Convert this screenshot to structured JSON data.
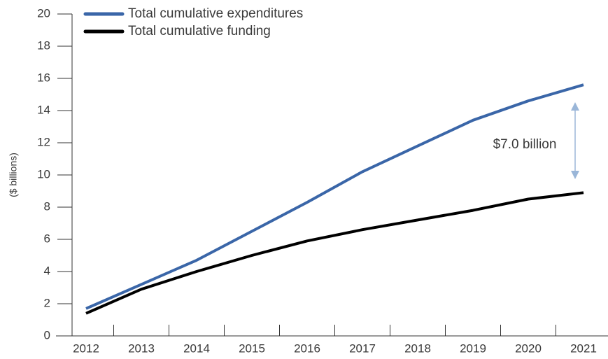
{
  "chart_data": {
    "type": "line",
    "ylabel": "($ billions)",
    "categories": [
      "2012",
      "2013",
      "2014",
      "2015",
      "2016",
      "2017",
      "2018",
      "2019",
      "2020",
      "2021"
    ],
    "series": [
      {
        "name": "Total cumulative expenditures",
        "color": "#3a66a8",
        "values": [
          1.7,
          3.2,
          4.7,
          6.5,
          8.3,
          10.2,
          11.8,
          13.4,
          14.6,
          15.6
        ]
      },
      {
        "name": "Total cumulative funding",
        "color": "#000000",
        "values": [
          1.4,
          2.9,
          4.0,
          5.0,
          5.9,
          6.6,
          7.2,
          7.8,
          8.5,
          8.9
        ]
      }
    ],
    "annotations": [
      {
        "text": "$7.0 billion"
      }
    ],
    "ylim": [
      0,
      20
    ],
    "yticks": [
      0,
      2,
      4,
      6,
      8,
      10,
      12,
      14,
      16,
      18,
      20
    ],
    "grid": false
  }
}
